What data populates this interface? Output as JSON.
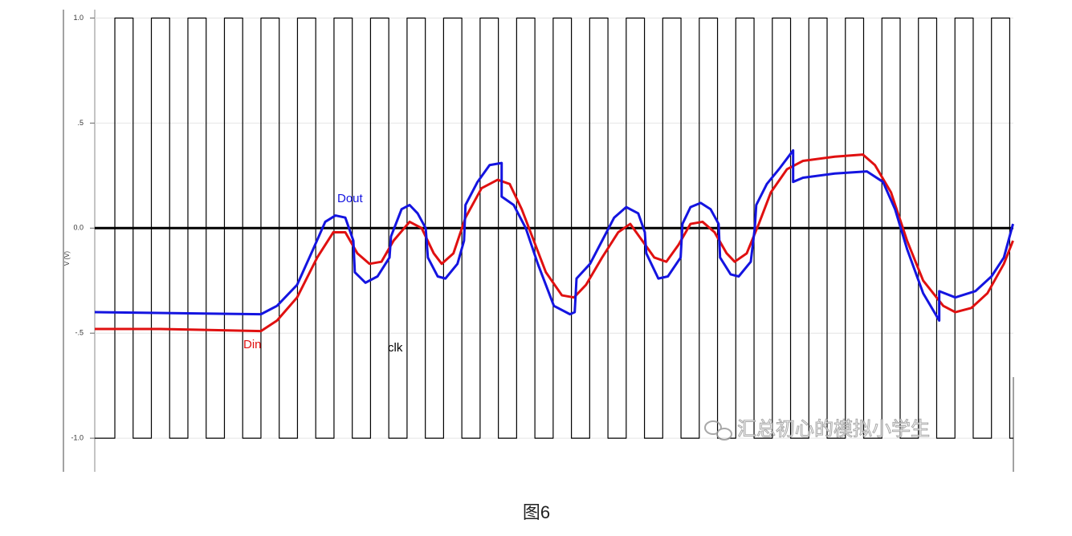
{
  "chart_data": {
    "type": "line",
    "ylabel": "V (V)",
    "ylim": [
      -1.16,
      1.04
    ],
    "yticks": [
      {
        "value": 1.0,
        "label": "1.0"
      },
      {
        "value": 0.5,
        "label": ".5"
      },
      {
        "value": 0.0,
        "label": "0.0"
      },
      {
        "value": -0.5,
        "label": "-.5"
      },
      {
        "value": -1.0,
        "label": "-1.0"
      }
    ],
    "xlim": [
      -0.55,
      24.6
    ],
    "grid": true,
    "reference_line": 0,
    "series": [
      {
        "name": "clk",
        "color": "#000000",
        "step": true,
        "x": [
          -0.55,
          0,
          0.5,
          1,
          1.5,
          2,
          2.5,
          3,
          3.5,
          4,
          4.5,
          5,
          5.5,
          6,
          6.5,
          7,
          7.5,
          8,
          8.5,
          9,
          9.5,
          10,
          10.5,
          11,
          11.5,
          12,
          12.5,
          13,
          13.5,
          14,
          14.5,
          15,
          15.5,
          16,
          16.5,
          17,
          17.5,
          18,
          18.5,
          19,
          19.5,
          20,
          20.5,
          21,
          21.5,
          22,
          22.5,
          23,
          23.5,
          24,
          24.5,
          24.6
        ],
        "values": [
          -1,
          1,
          -1,
          1,
          -1,
          1,
          -1,
          1,
          -1,
          1,
          -1,
          1,
          -1,
          1,
          -1,
          1,
          -1,
          1,
          -1,
          1,
          -1,
          1,
          -1,
          1,
          -1,
          1,
          -1,
          1,
          -1,
          1,
          -1,
          1,
          -1,
          1,
          -1,
          1,
          -1,
          1,
          -1,
          1,
          -1,
          1,
          -1,
          1,
          -1,
          1,
          -1,
          1,
          -1,
          1,
          -1,
          -1
        ]
      },
      {
        "name": "Din",
        "color": "#e01010",
        "x": [
          -0.55,
          1.25,
          4.0,
          4.44,
          4.99,
          5.54,
          5.98,
          6.31,
          6.64,
          6.97,
          7.3,
          7.63,
          8.07,
          8.4,
          8.73,
          8.95,
          9.27,
          9.6,
          10.04,
          10.48,
          10.81,
          11.14,
          11.47,
          11.8,
          12.24,
          12.57,
          12.9,
          13.34,
          13.78,
          14.11,
          14.44,
          14.77,
          15.1,
          15.43,
          15.76,
          16.09,
          16.42,
          16.75,
          16.97,
          17.3,
          17.63,
          17.96,
          18.4,
          18.84,
          19.71,
          20.48,
          20.81,
          21.25,
          21.69,
          22.13,
          22.68,
          23.01,
          23.45,
          23.89,
          24.34,
          24.59
        ],
        "values": [
          -0.48,
          -0.48,
          -0.49,
          -0.44,
          -0.33,
          -0.14,
          -0.02,
          -0.02,
          -0.12,
          -0.17,
          -0.16,
          -0.06,
          0.03,
          0.0,
          -0.12,
          -0.17,
          -0.12,
          0.05,
          0.19,
          0.23,
          0.21,
          0.09,
          -0.06,
          -0.21,
          -0.32,
          -0.33,
          -0.27,
          -0.14,
          -0.02,
          0.02,
          -0.06,
          -0.14,
          -0.16,
          -0.08,
          0.02,
          0.03,
          -0.02,
          -0.12,
          -0.16,
          -0.12,
          0.02,
          0.17,
          0.28,
          0.32,
          0.34,
          0.35,
          0.3,
          0.17,
          -0.06,
          -0.25,
          -0.37,
          -0.4,
          -0.38,
          -0.31,
          -0.17,
          -0.06
        ]
      },
      {
        "name": "Dout",
        "color": "#1414e0",
        "x": [
          -0.55,
          4.0,
          4.44,
          4.99,
          5.43,
          5.76,
          6.04,
          6.31,
          6.53,
          6.57,
          6.86,
          7.19,
          7.52,
          7.56,
          7.85,
          8.07,
          8.29,
          8.51,
          8.57,
          8.84,
          9.05,
          9.38,
          9.56,
          9.6,
          9.93,
          10.26,
          10.59,
          10.59,
          10.92,
          11.25,
          11.58,
          12.02,
          12.46,
          12.59,
          12.64,
          13.01,
          13.34,
          13.67,
          14.0,
          14.33,
          14.51,
          14.55,
          14.88,
          15.14,
          15.49,
          15.54,
          15.76,
          16.04,
          16.31,
          16.53,
          16.57,
          16.86,
          17.08,
          17.41,
          17.52,
          17.56,
          17.85,
          18.18,
          18.57,
          18.57,
          18.84,
          19.71,
          20.59,
          21.03,
          21.36,
          21.69,
          22.13,
          22.57,
          22.57,
          23.01,
          23.56,
          24.0,
          24.34,
          24.59
        ],
        "values": [
          -0.4,
          -0.41,
          -0.37,
          -0.27,
          -0.1,
          0.03,
          0.06,
          0.05,
          -0.06,
          -0.21,
          -0.26,
          -0.23,
          -0.14,
          -0.04,
          0.09,
          0.11,
          0.07,
          0.0,
          -0.14,
          -0.23,
          -0.24,
          -0.17,
          -0.06,
          0.11,
          0.22,
          0.3,
          0.31,
          0.15,
          0.11,
          0.0,
          -0.17,
          -0.37,
          -0.41,
          -0.4,
          -0.24,
          -0.17,
          -0.06,
          0.05,
          0.1,
          0.07,
          -0.02,
          -0.12,
          -0.24,
          -0.23,
          -0.14,
          0.02,
          0.1,
          0.12,
          0.09,
          0.02,
          -0.14,
          -0.22,
          -0.23,
          -0.16,
          0.0,
          0.11,
          0.21,
          0.28,
          0.37,
          0.22,
          0.24,
          0.26,
          0.27,
          0.22,
          0.09,
          -0.1,
          -0.31,
          -0.44,
          -0.3,
          -0.33,
          -0.3,
          -0.23,
          -0.14,
          0.02
        ]
      }
    ],
    "watermark": "汇总初心的模拟小学生",
    "caption": "图6"
  }
}
